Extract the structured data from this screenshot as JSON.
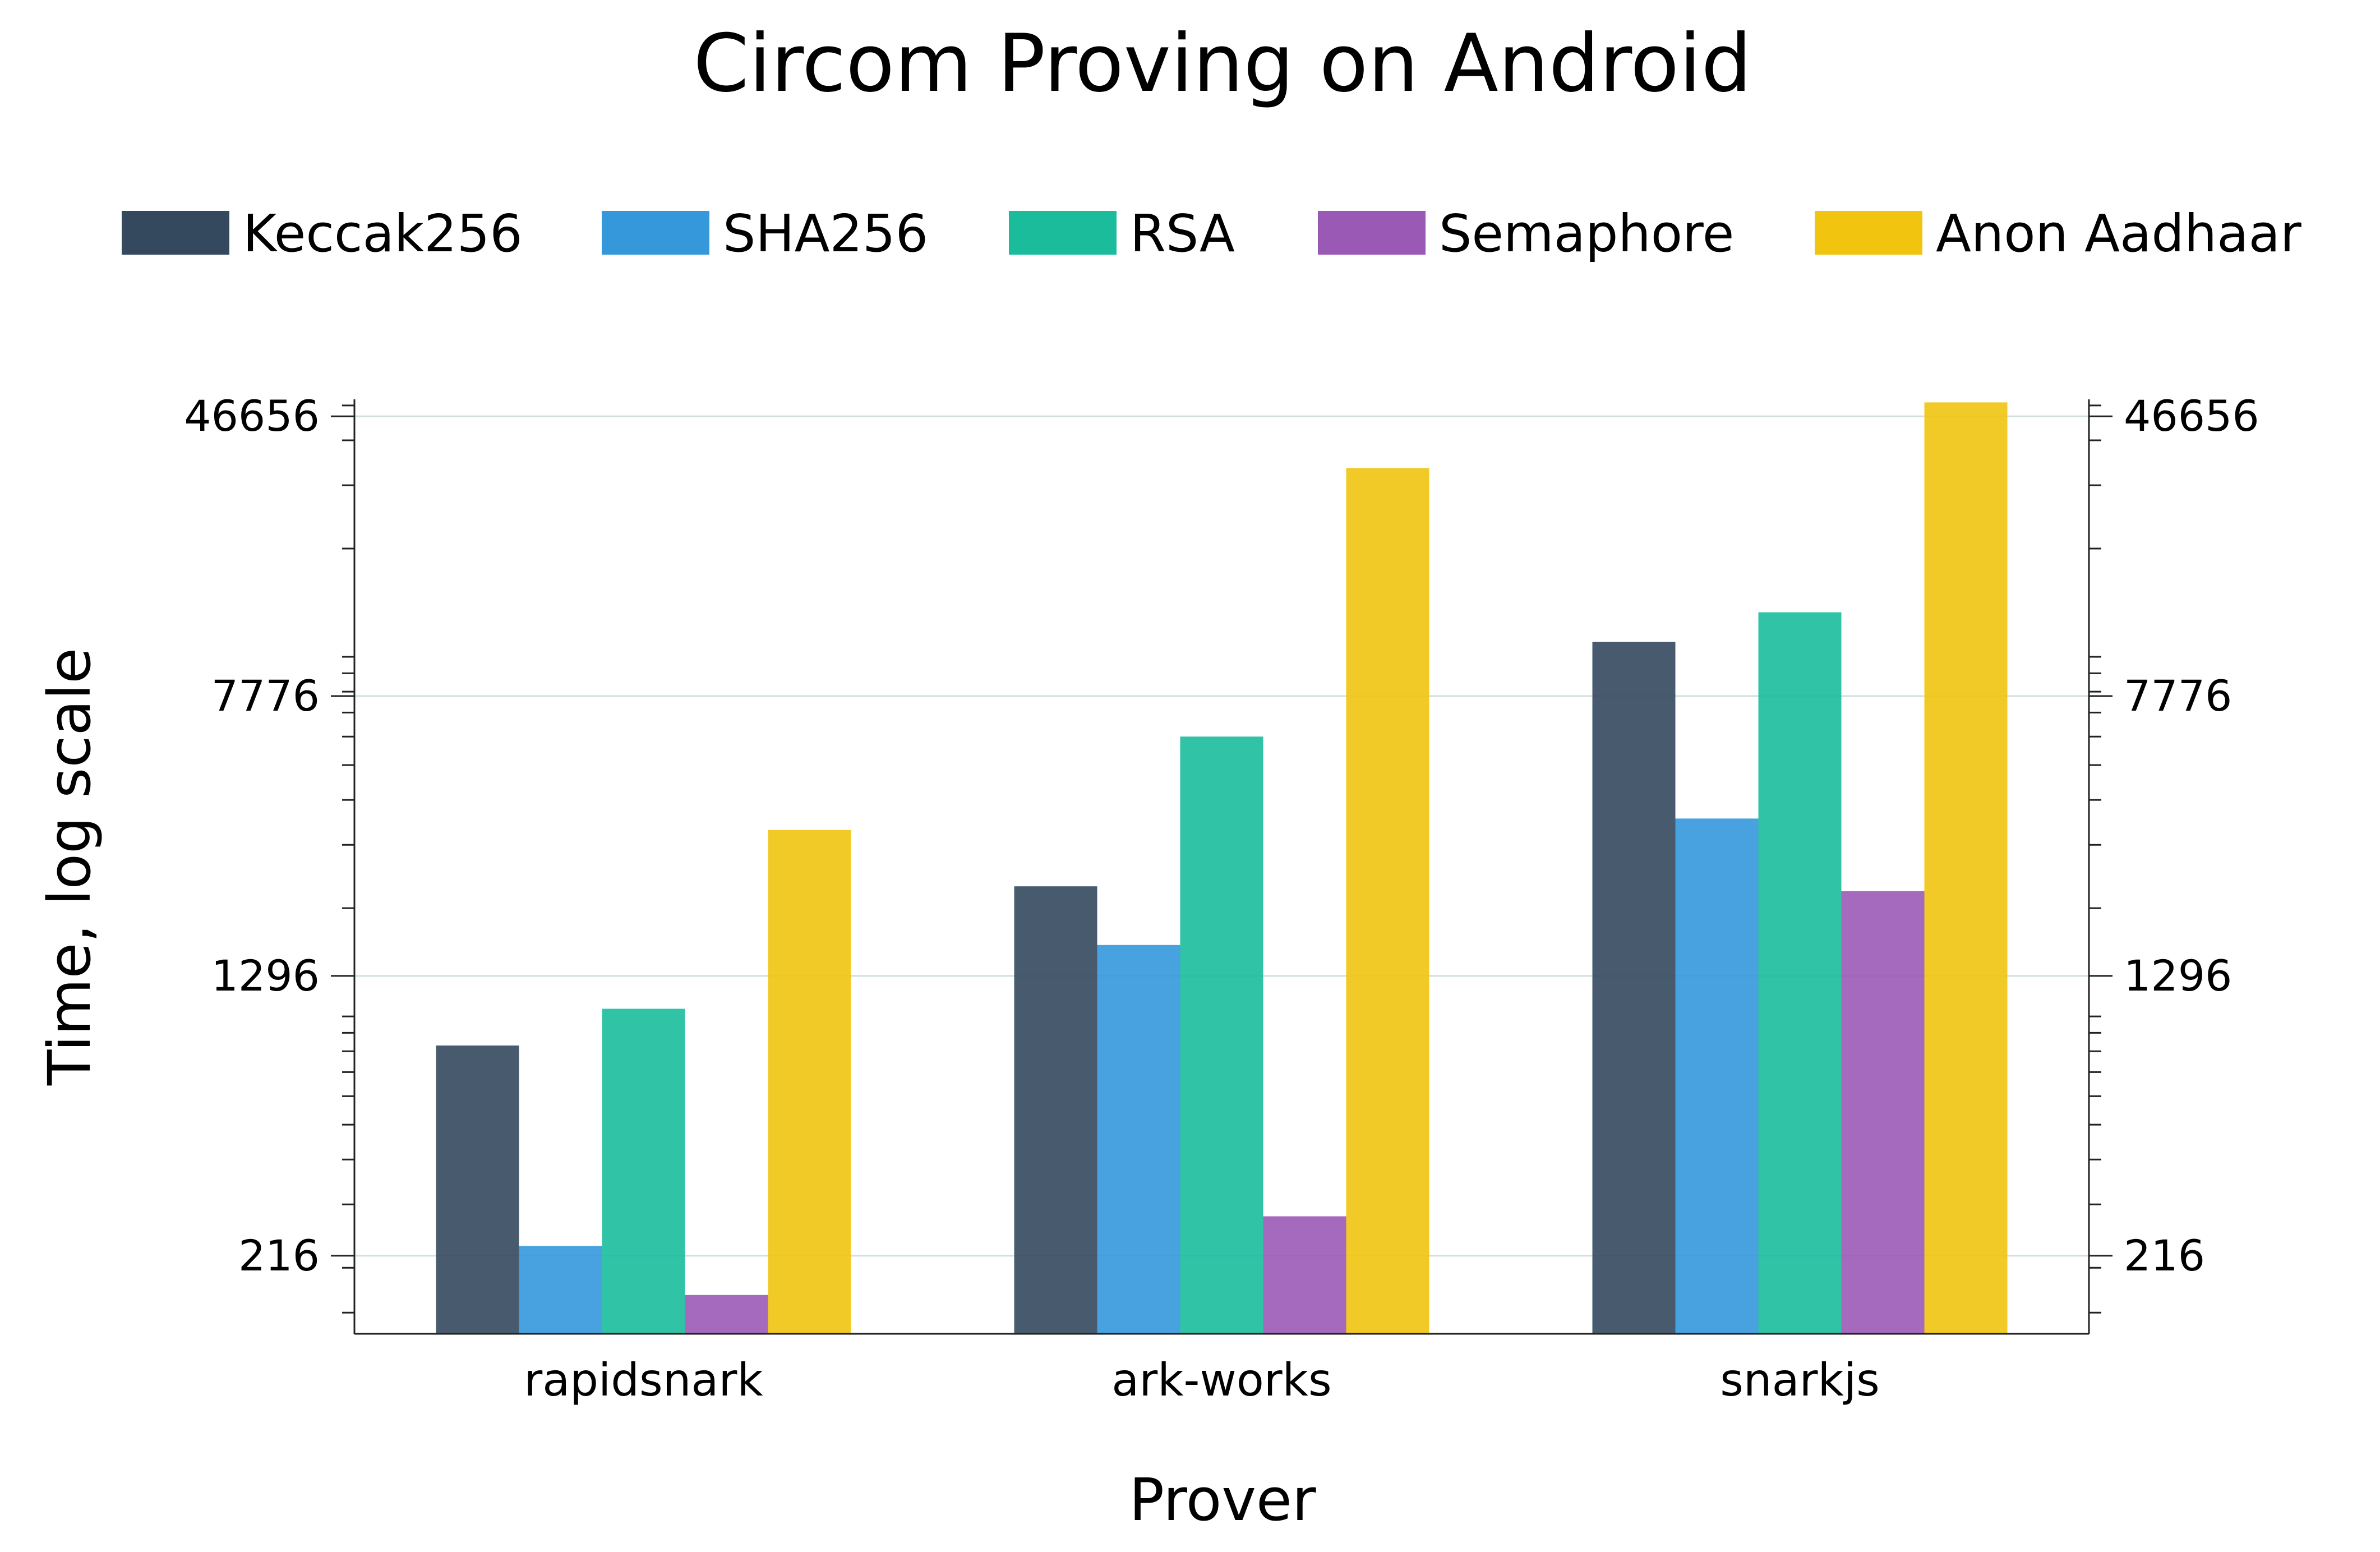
{
  "chart_data": {
    "type": "bar",
    "title": "Circom Proving on Android",
    "xlabel": "Prover",
    "ylabel": "Time, log scale",
    "y_scale": "log",
    "ylim": [
      131,
      52000
    ],
    "yticks": [
      216,
      1296,
      7776,
      46656
    ],
    "ytick_labels": [
      "216",
      "1296",
      "7776",
      "46656"
    ],
    "grid": "horizontal",
    "legend_position": "top",
    "categories": [
      "rapidsnark",
      "ark-works",
      "snarkjs"
    ],
    "series": [
      {
        "name": "Keccak256",
        "color": "#34495e",
        "values": [
          830,
          2300,
          11000
        ]
      },
      {
        "name": "SHA256",
        "color": "#3498db",
        "values": [
          230,
          1580,
          3550
        ]
      },
      {
        "name": "RSA",
        "color": "#1abc9c",
        "values": [
          1050,
          6000,
          13300
        ]
      },
      {
        "name": "Semaphore",
        "color": "#9b59b6",
        "values": [
          168,
          278,
          2230
        ]
      },
      {
        "name": "Anon Aadhaar",
        "color": "#f1c40f",
        "values": [
          3300,
          33500,
          51000
        ]
      }
    ]
  }
}
